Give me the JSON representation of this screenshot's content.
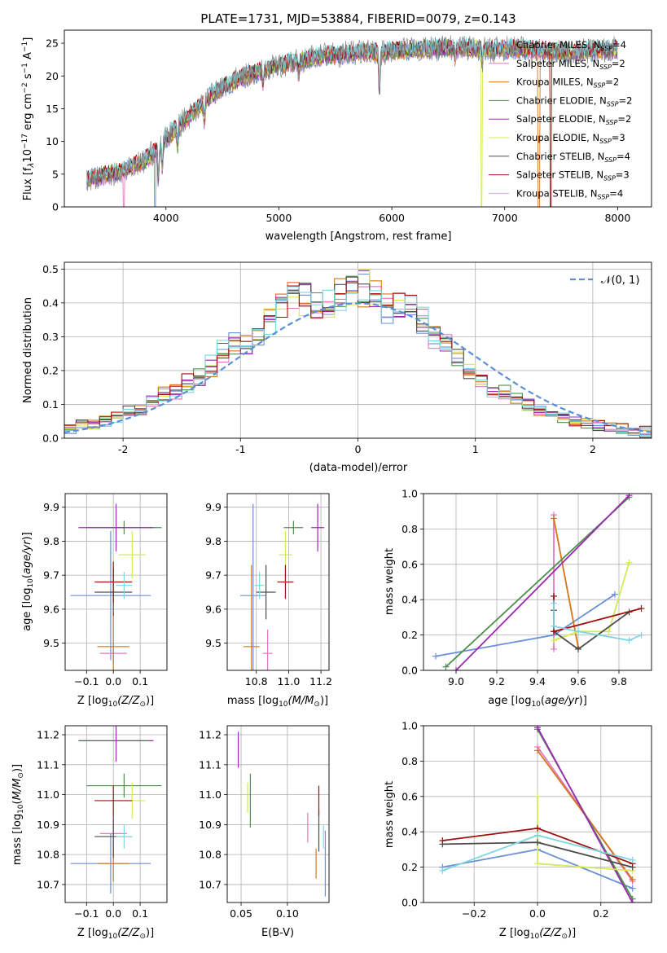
{
  "colors": {
    "chabrier_miles": "#6a8fd8",
    "salpeter_miles": "#e377c2",
    "kroupa_miles": "#d4761a",
    "chabrier_elodie": "#4f8f4f",
    "salpeter_elodie": "#9a2bb0",
    "kroupa_elodie": "#d4ea55",
    "chabrier_stelib": "#4d4d4d",
    "salpeter_stelib": "#a01010",
    "kroupa_stelib": "#7fd6e3",
    "data": "#888888",
    "normal": "#5b8fd8",
    "grid": "#b0b0b0"
  },
  "chart_data": [
    {
      "id": "spectrum",
      "type": "line",
      "title": "PLATE=1731, MJD=53884, FIBERID=0079, z=0.143",
      "xlabel": "wavelength [Angstrom, rest frame]",
      "ylabel_main": "Flux [f",
      "ylabel_unit": "erg cm",
      "ylim": [
        0,
        27
      ],
      "xlim": [
        3100,
        8300
      ],
      "xticks": [
        4000,
        5000,
        6000,
        7000,
        8000
      ],
      "yticks": [
        0,
        5,
        10,
        15,
        20,
        25
      ],
      "grid": false,
      "legend": "upper right",
      "legend_entries": [
        {
          "name": "Chabrier MILES, N",
          "n": "=4",
          "color_key": "chabrier_miles"
        },
        {
          "name": "Salpeter MILES, N",
          "n": "=2",
          "color_key": "salpeter_miles"
        },
        {
          "name": "Kroupa MILES, N",
          "n": "=2",
          "color_key": "kroupa_miles"
        },
        {
          "name": "Chabrier ELODIE, N",
          "n": "=2",
          "color_key": "chabrier_elodie"
        },
        {
          "name": "Salpeter ELODIE, N",
          "n": "=2",
          "color_key": "salpeter_elodie"
        },
        {
          "name": "Kroupa ELODIE, N",
          "n": "=3",
          "color_key": "kroupa_elodie"
        },
        {
          "name": "Chabrier STELIB, N",
          "n": "=4",
          "color_key": "chabrier_stelib"
        },
        {
          "name": "Salpeter STELIB, N",
          "n": "=3",
          "color_key": "salpeter_stelib"
        },
        {
          "name": "Kroupa STELIB, N",
          "n": "=4",
          "color_key": "kroupa_stelib"
        }
      ],
      "subscript": "SSP",
      "envelope": {
        "x": [
          3300,
          3400,
          3500,
          3600,
          3700,
          3800,
          3900,
          4000,
          4100,
          4200,
          4300,
          4400,
          4500,
          4600,
          4700,
          4800,
          4900,
          5000,
          5100,
          5200,
          5300,
          5400,
          5500,
          5600,
          5700,
          5800,
          5900,
          6000,
          6100,
          6200,
          6300,
          6400,
          6500,
          6600,
          6700,
          6800,
          6900,
          7000,
          7100,
          7200,
          7300,
          7400,
          7500,
          7600,
          7700,
          7800,
          7900,
          8000
        ],
        "y": [
          4.3,
          4.6,
          5.0,
          5.4,
          6.2,
          7.0,
          8.5,
          10.5,
          12.2,
          13.8,
          15.4,
          17.0,
          18.2,
          19.2,
          20.0,
          20.6,
          21.0,
          21.6,
          22.0,
          22.4,
          22.8,
          23.1,
          23.2,
          23.4,
          23.6,
          23.7,
          23.5,
          23.8,
          23.9,
          24.0,
          24.1,
          24.2,
          24.3,
          24.3,
          24.2,
          24.1,
          24.0,
          24.1,
          24.2,
          24.0,
          23.9,
          23.8,
          23.7,
          23.7,
          23.8,
          23.9,
          24.0,
          24.1
        ]
      },
      "dips": [
        [
          3933,
          5
        ],
        [
          3968,
          4
        ],
        [
          4102,
          3
        ],
        [
          4340,
          3
        ],
        [
          4861,
          2.5
        ],
        [
          5175,
          2
        ],
        [
          5890,
          6
        ],
        [
          6563,
          2
        ],
        [
          6800,
          2
        ]
      ]
    },
    {
      "id": "residuals",
      "type": "line",
      "xlabel": "(data-model)/error",
      "ylabel": "Normed distribution",
      "xlim": [
        -2.5,
        2.5
      ],
      "ylim": [
        0,
        0.52
      ],
      "xticks": [
        -2,
        -1,
        0,
        1,
        2
      ],
      "yticks": [
        0.0,
        0.1,
        0.2,
        0.3,
        0.4,
        0.5
      ],
      "grid": true,
      "legend": "upper right",
      "legend_label": "𝒩(0, 1)",
      "bins_start": -2.5,
      "bin_width": 0.1,
      "base_hist": [
        0.03,
        0.04,
        0.04,
        0.05,
        0.06,
        0.08,
        0.09,
        0.11,
        0.13,
        0.14,
        0.16,
        0.18,
        0.21,
        0.25,
        0.28,
        0.28,
        0.3,
        0.34,
        0.4,
        0.42,
        0.41,
        0.39,
        0.4,
        0.42,
        0.44,
        0.45,
        0.42,
        0.38,
        0.4,
        0.38,
        0.34,
        0.3,
        0.27,
        0.24,
        0.2,
        0.17,
        0.15,
        0.13,
        0.12,
        0.1,
        0.08,
        0.07,
        0.06,
        0.05,
        0.05,
        0.04,
        0.03,
        0.03,
        0.02,
        0.02
      ]
    },
    {
      "id": "age_vs_Z",
      "type": "scatter",
      "xlabel": "Z [log",
      "ylabel": "age  [log",
      "xlim": [
        -0.18,
        0.2
      ],
      "ylim": [
        9.42,
        9.94
      ],
      "xticks": [
        -0.1,
        0.0,
        0.1
      ],
      "yticks": [
        9.5,
        9.6,
        9.7,
        9.8,
        9.9
      ],
      "grid": true,
      "points": [
        {
          "key": "chabrier_miles",
          "x": -0.01,
          "xerr": 0.15,
          "y": 9.64,
          "yerr": 0.19
        },
        {
          "key": "salpeter_miles",
          "x": 0.0,
          "xerr": 0.05,
          "y": 9.47,
          "yerr": 0.03
        },
        {
          "key": "kroupa_miles",
          "x": 0.0,
          "xerr": 0.06,
          "y": 9.49,
          "yerr": 0.1
        },
        {
          "key": "chabrier_elodie",
          "x": 0.04,
          "xerr": 0.14,
          "y": 9.84,
          "yerr": 0.02
        },
        {
          "key": "salpeter_elodie",
          "x": 0.01,
          "xerr": 0.14,
          "y": 9.84,
          "yerr": 0.07
        },
        {
          "key": "kroupa_elodie",
          "x": 0.07,
          "xerr": 0.05,
          "y": 9.76,
          "yerr": 0.07
        },
        {
          "key": "chabrier_stelib",
          "x": 0.0,
          "xerr": 0.07,
          "y": 9.65,
          "yerr": 0.07
        },
        {
          "key": "salpeter_stelib",
          "x": 0.0,
          "xerr": 0.07,
          "y": 9.68,
          "yerr": 0.06
        },
        {
          "key": "kroupa_stelib",
          "x": 0.04,
          "xerr": 0.03,
          "y": 9.67,
          "yerr": 0.04
        }
      ]
    },
    {
      "id": "age_vs_mass",
      "type": "scatter",
      "xlabel": "mass [log",
      "xlim": [
        10.62,
        11.25
      ],
      "ylim": [
        9.42,
        9.94
      ],
      "xticks": [
        10.8,
        11.0,
        11.2
      ],
      "yticks": [
        9.5,
        9.6,
        9.7,
        9.8,
        9.9
      ],
      "grid": true,
      "points": [
        {
          "key": "chabrier_miles",
          "x": 10.78,
          "xerr": 0.08,
          "y": 9.64,
          "yerr": 0.27
        },
        {
          "key": "salpeter_miles",
          "x": 10.87,
          "xerr": 0.03,
          "y": 9.47,
          "yerr": 0.07
        },
        {
          "key": "kroupa_miles",
          "x": 10.77,
          "xerr": 0.05,
          "y": 9.49,
          "yerr": 0.24
        },
        {
          "key": "chabrier_elodie",
          "x": 11.03,
          "xerr": 0.06,
          "y": 9.84,
          "yerr": 0.02
        },
        {
          "key": "salpeter_elodie",
          "x": 11.18,
          "xerr": 0.04,
          "y": 9.84,
          "yerr": 0.07
        },
        {
          "key": "kroupa_elodie",
          "x": 10.98,
          "xerr": 0.04,
          "y": 9.76,
          "yerr": 0.07
        },
        {
          "key": "chabrier_stelib",
          "x": 10.86,
          "xerr": 0.06,
          "y": 9.65,
          "yerr": 0.08
        },
        {
          "key": "salpeter_stelib",
          "x": 10.98,
          "xerr": 0.05,
          "y": 9.68,
          "yerr": 0.05
        },
        {
          "key": "kroupa_stelib",
          "x": 10.82,
          "xerr": 0.03,
          "y": 9.67,
          "yerr": 0.04
        }
      ]
    },
    {
      "id": "weight_vs_age",
      "type": "line",
      "xlabel": "age  [log",
      "ylabel": "mass weight",
      "xlim": [
        8.84,
        9.96
      ],
      "ylim": [
        0,
        1.0
      ],
      "xticks": [
        9.0,
        9.2,
        9.4,
        9.6,
        9.8
      ],
      "yticks": [
        0.0,
        0.2,
        0.4,
        0.6,
        0.8,
        1.0
      ],
      "grid": true,
      "series": [
        {
          "key": "chabrier_miles",
          "x": [
            8.9,
            9.48,
            9.78
          ],
          "y": [
            0.08,
            0.2,
            0.43
          ]
        },
        {
          "key": "salpeter_miles",
          "x": [
            9.48,
            9.48
          ],
          "y": [
            0.12,
            0.88
          ]
        },
        {
          "key": "kroupa_miles",
          "x": [
            9.48,
            9.6
          ],
          "y": [
            0.86,
            0.13
          ]
        },
        {
          "key": "chabrier_elodie",
          "x": [
            8.95,
            9.85
          ],
          "y": [
            0.02,
            0.98
          ]
        },
        {
          "key": "salpeter_elodie",
          "x": [
            9.0,
            9.85
          ],
          "y": [
            0.0,
            0.99
          ]
        },
        {
          "key": "kroupa_elodie",
          "x": [
            9.48,
            9.6,
            9.75,
            9.85
          ],
          "y": [
            0.17,
            0.22,
            0.22,
            0.61
          ]
        },
        {
          "key": "chabrier_stelib",
          "x": [
            9.48,
            9.48,
            9.6,
            9.85
          ],
          "y": [
            0.34,
            0.22,
            0.12,
            0.33
          ]
        },
        {
          "key": "salpeter_stelib",
          "x": [
            9.48,
            9.48,
            9.91
          ],
          "y": [
            0.42,
            0.22,
            0.35
          ]
        },
        {
          "key": "kroupa_stelib",
          "x": [
            9.48,
            9.48,
            9.6,
            9.85,
            9.91
          ],
          "y": [
            0.38,
            0.25,
            0.22,
            0.17,
            0.2
          ]
        }
      ]
    },
    {
      "id": "mass_vs_Z",
      "type": "scatter",
      "xlabel": "Z [log",
      "ylabel": "mass [log",
      "xlim": [
        -0.18,
        0.2
      ],
      "ylim": [
        10.64,
        11.23
      ],
      "xticks": [
        -0.1,
        0.0,
        0.1
      ],
      "yticks": [
        10.7,
        10.8,
        10.9,
        11.0,
        11.1,
        11.2
      ],
      "grid": true,
      "points": [
        {
          "key": "chabrier_miles",
          "x": -0.01,
          "xerr": 0.15,
          "y": 10.77,
          "yerr": 0.1
        },
        {
          "key": "salpeter_miles",
          "x": 0.0,
          "xerr": 0.05,
          "y": 10.87,
          "yerr": 0.05
        },
        {
          "key": "kroupa_miles",
          "x": 0.0,
          "xerr": 0.06,
          "y": 10.77,
          "yerr": 0.06
        },
        {
          "key": "chabrier_elodie",
          "x": 0.04,
          "xerr": 0.14,
          "y": 11.03,
          "yerr": 0.04
        },
        {
          "key": "salpeter_elodie",
          "x": 0.01,
          "xerr": 0.14,
          "y": 11.18,
          "yerr": 0.07
        },
        {
          "key": "kroupa_elodie",
          "x": 0.07,
          "xerr": 0.05,
          "y": 10.98,
          "yerr": 0.06
        },
        {
          "key": "chabrier_stelib",
          "x": 0.0,
          "xerr": 0.07,
          "y": 10.86,
          "yerr": 0.07
        },
        {
          "key": "salpeter_stelib",
          "x": 0.0,
          "xerr": 0.07,
          "y": 10.98,
          "yerr": 0.05
        },
        {
          "key": "kroupa_stelib",
          "x": 0.04,
          "xerr": 0.03,
          "y": 10.86,
          "yerr": 0.04
        }
      ]
    },
    {
      "id": "mass_vs_ebv",
      "type": "scatter",
      "xlabel": "E(B-V)",
      "xlim": [
        0.035,
        0.145
      ],
      "ylim": [
        10.64,
        11.23
      ],
      "xticks": [
        0.05,
        0.1
      ],
      "yticks": [
        10.7,
        10.8,
        10.9,
        11.0,
        11.1,
        11.2
      ],
      "grid": true,
      "points": [
        {
          "key": "chabrier_miles",
          "x": 0.141,
          "yerr": 0.11,
          "y": 10.77
        },
        {
          "key": "salpeter_miles",
          "x": 0.122,
          "yerr": 0.05,
          "y": 10.89
        },
        {
          "key": "kroupa_miles",
          "x": 0.131,
          "yerr": 0.05,
          "y": 10.77
        },
        {
          "key": "chabrier_elodie",
          "x": 0.06,
          "yerr": 0.09,
          "y": 10.98
        },
        {
          "key": "salpeter_elodie",
          "x": 0.047,
          "yerr": 0.06,
          "y": 11.15
        },
        {
          "key": "kroupa_elodie",
          "x": 0.057,
          "yerr": 0.05,
          "y": 10.99
        },
        {
          "key": "chabrier_stelib",
          "x": 0.134,
          "yerr": 0.07,
          "y": 10.88
        },
        {
          "key": "salpeter_stelib",
          "x": 0.134,
          "yerr": 0.05,
          "y": 10.98
        },
        {
          "key": "kroupa_stelib",
          "x": 0.139,
          "yerr": 0.04,
          "y": 10.86
        }
      ]
    },
    {
      "id": "weight_vs_Z",
      "type": "line",
      "xlabel": "Z [log",
      "ylabel": "mass weight",
      "xlim": [
        -0.36,
        0.36
      ],
      "ylim": [
        0,
        1.0
      ],
      "xticks": [
        -0.2,
        0.0,
        0.2
      ],
      "yticks": [
        0.0,
        0.2,
        0.4,
        0.6,
        0.8,
        1.0
      ],
      "grid": true,
      "series": [
        {
          "key": "chabrier_miles",
          "x": [
            -0.3,
            0.0,
            0.3
          ],
          "y": [
            0.2,
            0.3,
            0.08
          ]
        },
        {
          "key": "salpeter_miles",
          "x": [
            0.0,
            0.3
          ],
          "y": [
            0.88,
            0.12
          ]
        },
        {
          "key": "kroupa_miles",
          "x": [
            0.0,
            0.3
          ],
          "y": [
            0.86,
            0.13
          ]
        },
        {
          "key": "chabrier_elodie",
          "x": [
            0.0,
            0.3
          ],
          "y": [
            0.98,
            0.02
          ]
        },
        {
          "key": "salpeter_elodie",
          "x": [
            0.0,
            0.3
          ],
          "y": [
            0.99,
            0.0
          ]
        },
        {
          "key": "kroupa_elodie",
          "x": [
            0.0,
            0.0,
            0.3
          ],
          "y": [
            0.6,
            0.22,
            0.18
          ]
        },
        {
          "key": "chabrier_stelib",
          "x": [
            -0.3,
            0.0,
            0.3
          ],
          "y": [
            0.33,
            0.34,
            0.2
          ]
        },
        {
          "key": "salpeter_stelib",
          "x": [
            -0.3,
            0.0,
            0.3
          ],
          "y": [
            0.35,
            0.42,
            0.22
          ]
        },
        {
          "key": "kroupa_stelib",
          "x": [
            -0.3,
            0.0,
            0.3
          ],
          "y": [
            0.18,
            0.38,
            0.24
          ]
        }
      ]
    }
  ]
}
